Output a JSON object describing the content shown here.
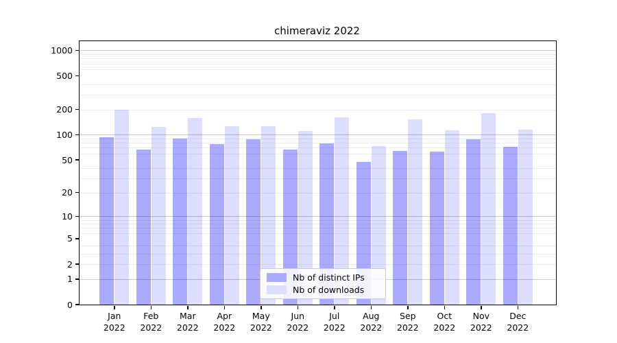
{
  "title": "chimeraviz 2022",
  "chart_data": {
    "type": "bar",
    "title": "chimeraviz 2022",
    "categories": [
      "Jan",
      "Feb",
      "Mar",
      "Apr",
      "May",
      "Jun",
      "Jul",
      "Aug",
      "Sep",
      "Oct",
      "Nov",
      "Dec"
    ],
    "year_label": "2022",
    "series": [
      {
        "name": "Nb of distinct IPs",
        "color": "#aaaaff",
        "values": [
          93,
          66,
          90,
          77,
          89,
          67,
          79,
          47,
          64,
          63,
          89,
          72
        ]
      },
      {
        "name": "Nb of downloads",
        "color": "#ddddff",
        "values": [
          197,
          123,
          157,
          127,
          126,
          110,
          160,
          73,
          152,
          113,
          182,
          115
        ]
      }
    ],
    "xlabel": "",
    "ylabel": "",
    "yscale": "log1p",
    "ylim": [
      0,
      1300
    ],
    "yticks": [
      0,
      1,
      2,
      5,
      10,
      20,
      50,
      100,
      200,
      500,
      1000
    ],
    "y_major_gridlines": [
      1,
      10,
      100,
      1000
    ],
    "y_minor_gridlines": [
      2,
      3,
      4,
      6,
      7,
      8,
      9,
      20,
      30,
      40,
      60,
      70,
      80,
      90,
      200,
      300,
      400,
      600,
      700,
      800,
      900
    ],
    "grid": true,
    "legend_position": "inside-bottom-center"
  },
  "colors": {
    "bar_ips": "#aaaaff",
    "bar_downloads": "#ddddff",
    "grid_major": "rgba(0,0,0,0.20)",
    "grid_minor": "rgba(0,0,0,0.07)",
    "spine": "#000000",
    "legend_border": "#cccccc",
    "background": "#ffffff"
  }
}
